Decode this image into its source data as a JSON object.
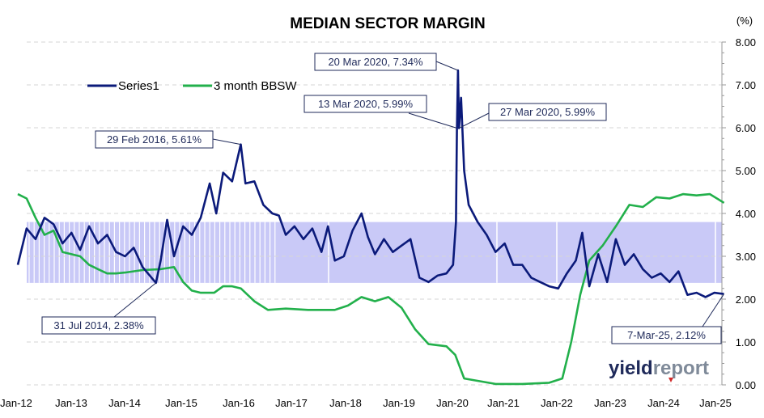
{
  "chart_data": {
    "type": "line",
    "title": "MEDIAN SECTOR MARGIN",
    "y_unit": "(%)",
    "ylim": [
      0,
      8
    ],
    "y_ticks": [
      "0.00",
      "1.00",
      "2.00",
      "3.00",
      "4.00",
      "5.00",
      "6.00",
      "7.00",
      "8.00"
    ],
    "x_ticks": [
      "Jan-12",
      "Jan-13",
      "Jan-14",
      "Jan-15",
      "Jan-16",
      "Jan-17",
      "Jan-18",
      "Jan-19",
      "Jan-20",
      "Jan-21",
      "Jan-22",
      "Jan-23",
      "Jan-24",
      "Jan-25"
    ],
    "x_range": [
      "2012-01-01",
      "2025-01-01"
    ],
    "legend_position": "top-left",
    "grid": "horizontal dashed",
    "band": {
      "low": 2.38,
      "high": 3.8
    },
    "series": [
      {
        "name": "Series1",
        "color": "#0b1a7a",
        "points": [
          [
            "2012-01-01",
            2.8
          ],
          [
            "2012-03-01",
            3.65
          ],
          [
            "2012-05-01",
            3.4
          ],
          [
            "2012-07-01",
            3.9
          ],
          [
            "2012-09-01",
            3.75
          ],
          [
            "2012-11-01",
            3.3
          ],
          [
            "2013-01-01",
            3.55
          ],
          [
            "2013-03-01",
            3.15
          ],
          [
            "2013-05-01",
            3.7
          ],
          [
            "2013-07-01",
            3.3
          ],
          [
            "2013-09-01",
            3.5
          ],
          [
            "2013-11-01",
            3.1
          ],
          [
            "2014-01-01",
            3.0
          ],
          [
            "2014-03-01",
            3.2
          ],
          [
            "2014-05-01",
            2.75
          ],
          [
            "2014-07-31",
            2.38
          ],
          [
            "2014-09-01",
            2.9
          ],
          [
            "2014-10-15",
            3.85
          ],
          [
            "2014-12-01",
            3.0
          ],
          [
            "2015-02-01",
            3.7
          ],
          [
            "2015-04-01",
            3.5
          ],
          [
            "2015-06-01",
            3.9
          ],
          [
            "2015-08-01",
            4.7
          ],
          [
            "2015-09-15",
            4.0
          ],
          [
            "2015-11-01",
            4.95
          ],
          [
            "2016-01-01",
            4.75
          ],
          [
            "2016-02-29",
            5.61
          ],
          [
            "2016-04-01",
            4.7
          ],
          [
            "2016-06-01",
            4.75
          ],
          [
            "2016-08-01",
            4.2
          ],
          [
            "2016-10-01",
            4.0
          ],
          [
            "2016-11-15",
            3.95
          ],
          [
            "2017-01-01",
            3.5
          ],
          [
            "2017-03-01",
            3.7
          ],
          [
            "2017-05-01",
            3.4
          ],
          [
            "2017-07-01",
            3.65
          ],
          [
            "2017-09-01",
            3.1
          ],
          [
            "2017-10-15",
            3.7
          ],
          [
            "2017-12-01",
            2.9
          ],
          [
            "2018-02-01",
            3.0
          ],
          [
            "2018-04-01",
            3.6
          ],
          [
            "2018-06-01",
            4.0
          ],
          [
            "2018-07-15",
            3.45
          ],
          [
            "2018-09-01",
            3.05
          ],
          [
            "2018-11-01",
            3.4
          ],
          [
            "2019-01-01",
            3.1
          ],
          [
            "2019-03-01",
            3.25
          ],
          [
            "2019-05-01",
            3.4
          ],
          [
            "2019-07-01",
            2.5
          ],
          [
            "2019-09-01",
            2.4
          ],
          [
            "2019-11-01",
            2.55
          ],
          [
            "2020-01-01",
            2.6
          ],
          [
            "2020-02-15",
            2.8
          ],
          [
            "2020-03-06",
            3.8
          ],
          [
            "2020-03-13",
            5.99
          ],
          [
            "2020-03-20",
            7.34
          ],
          [
            "2020-03-27",
            5.99
          ],
          [
            "2020-04-10",
            6.7
          ],
          [
            "2020-05-01",
            5.0
          ],
          [
            "2020-06-01",
            4.2
          ],
          [
            "2020-08-01",
            3.8
          ],
          [
            "2020-10-01",
            3.5
          ],
          [
            "2020-12-01",
            3.1
          ],
          [
            "2021-02-01",
            3.3
          ],
          [
            "2021-04-01",
            2.8
          ],
          [
            "2021-06-01",
            2.8
          ],
          [
            "2021-08-01",
            2.5
          ],
          [
            "2021-10-01",
            2.4
          ],
          [
            "2021-12-01",
            2.3
          ],
          [
            "2022-02-01",
            2.25
          ],
          [
            "2022-04-01",
            2.6
          ],
          [
            "2022-06-01",
            2.9
          ],
          [
            "2022-07-15",
            3.55
          ],
          [
            "2022-09-01",
            2.3
          ],
          [
            "2022-11-01",
            3.05
          ],
          [
            "2023-01-01",
            2.4
          ],
          [
            "2023-03-01",
            3.4
          ],
          [
            "2023-05-01",
            2.8
          ],
          [
            "2023-07-01",
            3.05
          ],
          [
            "2023-09-01",
            2.7
          ],
          [
            "2023-11-01",
            2.5
          ],
          [
            "2024-01-01",
            2.6
          ],
          [
            "2024-03-01",
            2.4
          ],
          [
            "2024-05-01",
            2.65
          ],
          [
            "2024-07-01",
            2.1
          ],
          [
            "2024-09-01",
            2.15
          ],
          [
            "2024-11-01",
            2.05
          ],
          [
            "2025-01-01",
            2.15
          ],
          [
            "2025-03-07",
            2.12
          ]
        ]
      },
      {
        "name": "3 month BBSW",
        "color": "#22b04b",
        "points": [
          [
            "2012-01-01",
            4.45
          ],
          [
            "2012-03-01",
            4.35
          ],
          [
            "2012-05-01",
            3.9
          ],
          [
            "2012-07-01",
            3.5
          ],
          [
            "2012-09-01",
            3.6
          ],
          [
            "2012-11-01",
            3.1
          ],
          [
            "2013-01-01",
            3.05
          ],
          [
            "2013-03-01",
            3.0
          ],
          [
            "2013-05-01",
            2.8
          ],
          [
            "2013-07-01",
            2.7
          ],
          [
            "2013-09-01",
            2.6
          ],
          [
            "2013-11-01",
            2.6
          ],
          [
            "2014-01-01",
            2.62
          ],
          [
            "2014-05-01",
            2.68
          ],
          [
            "2014-09-01",
            2.7
          ],
          [
            "2014-12-01",
            2.75
          ],
          [
            "2015-02-01",
            2.4
          ],
          [
            "2015-04-01",
            2.2
          ],
          [
            "2015-06-01",
            2.15
          ],
          [
            "2015-09-01",
            2.15
          ],
          [
            "2015-11-01",
            2.3
          ],
          [
            "2016-01-01",
            2.3
          ],
          [
            "2016-03-01",
            2.25
          ],
          [
            "2016-06-01",
            1.95
          ],
          [
            "2016-09-01",
            1.75
          ],
          [
            "2017-01-01",
            1.78
          ],
          [
            "2017-06-01",
            1.75
          ],
          [
            "2017-12-01",
            1.75
          ],
          [
            "2018-03-01",
            1.85
          ],
          [
            "2018-06-01",
            2.05
          ],
          [
            "2018-09-01",
            1.95
          ],
          [
            "2018-12-01",
            2.05
          ],
          [
            "2019-03-01",
            1.8
          ],
          [
            "2019-06-01",
            1.3
          ],
          [
            "2019-09-01",
            0.95
          ],
          [
            "2020-01-01",
            0.9
          ],
          [
            "2020-03-01",
            0.7
          ],
          [
            "2020-05-01",
            0.15
          ],
          [
            "2020-12-01",
            0.02
          ],
          [
            "2021-06-01",
            0.02
          ],
          [
            "2021-12-01",
            0.05
          ],
          [
            "2022-03-01",
            0.15
          ],
          [
            "2022-05-01",
            1.0
          ],
          [
            "2022-07-01",
            2.1
          ],
          [
            "2022-09-01",
            2.9
          ],
          [
            "2022-12-01",
            3.25
          ],
          [
            "2023-03-01",
            3.7
          ],
          [
            "2023-06-01",
            4.2
          ],
          [
            "2023-09-01",
            4.15
          ],
          [
            "2023-12-01",
            4.38
          ],
          [
            "2024-03-01",
            4.35
          ],
          [
            "2024-06-01",
            4.45
          ],
          [
            "2024-09-01",
            4.42
          ],
          [
            "2024-12-01",
            4.45
          ],
          [
            "2025-03-07",
            4.25
          ]
        ]
      }
    ],
    "annotations": [
      {
        "text": "31 Jul 2014, 2.38%",
        "x": "2014-07-31",
        "y": 2.38
      },
      {
        "text": "29 Feb 2016, 5.61%",
        "x": "2016-02-29",
        "y": 5.61
      },
      {
        "text": "20 Mar 2020, 7.34%",
        "x": "2020-03-20",
        "y": 7.34
      },
      {
        "text": "13 Mar 2020, 5.99%",
        "x": "2020-03-13",
        "y": 5.99
      },
      {
        "text": "27 Mar 2020, 5.99%",
        "x": "2020-03-27",
        "y": 5.99
      },
      {
        "text": "7-Mar-25, 2.12%",
        "x": "2025-03-07",
        "y": 2.12
      }
    ]
  },
  "brand": {
    "part1": "yield",
    "part2": "report",
    "color1": "#1f2a5a",
    "color2": "#7f8a99"
  },
  "colors": {
    "band_fill": "#c9c9f7",
    "band_stripe": "#ffffff",
    "grid": "#d6d6d6",
    "ann_border": "#1f2a5a"
  }
}
